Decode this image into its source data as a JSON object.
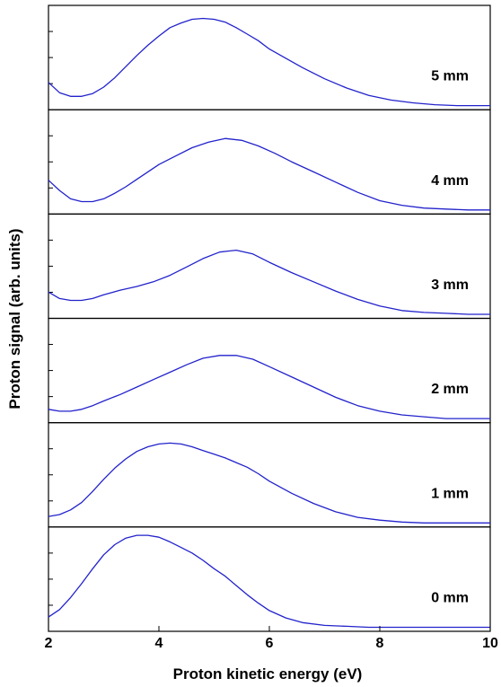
{
  "chart_data": {
    "type": "line",
    "xlabel": "Proton kinetic energy (eV)",
    "ylabel": "Proton signal (arb. units)",
    "xlim": [
      2,
      10
    ],
    "xticks": [
      "2",
      "4",
      "6",
      "8",
      "10"
    ],
    "ylim": [
      0,
      1
    ],
    "line_color": "#2222cc",
    "panels": [
      {
        "name": "5 mm",
        "x": [
          2.0,
          2.2,
          2.4,
          2.6,
          2.8,
          3.0,
          3.2,
          3.4,
          3.6,
          3.8,
          4.0,
          4.2,
          4.4,
          4.6,
          4.8,
          5.0,
          5.2,
          5.4,
          5.6,
          5.8,
          6.0,
          6.3,
          6.6,
          7.0,
          7.4,
          7.8,
          8.2,
          8.6,
          9.0,
          9.4,
          10.0
        ],
        "y": [
          0.26,
          0.15,
          0.11,
          0.11,
          0.14,
          0.21,
          0.31,
          0.43,
          0.55,
          0.66,
          0.76,
          0.85,
          0.9,
          0.94,
          0.95,
          0.94,
          0.91,
          0.85,
          0.78,
          0.71,
          0.62,
          0.52,
          0.42,
          0.3,
          0.2,
          0.12,
          0.07,
          0.04,
          0.02,
          0.01,
          0.01
        ]
      },
      {
        "name": "4 mm",
        "x": [
          2.0,
          2.2,
          2.4,
          2.6,
          2.8,
          3.0,
          3.2,
          3.4,
          3.6,
          3.8,
          4.0,
          4.3,
          4.6,
          4.9,
          5.2,
          5.5,
          5.8,
          6.1,
          6.4,
          6.8,
          7.2,
          7.6,
          8.0,
          8.4,
          8.8,
          9.2,
          9.6,
          10.0
        ],
        "y": [
          0.33,
          0.22,
          0.13,
          0.1,
          0.1,
          0.13,
          0.19,
          0.26,
          0.34,
          0.42,
          0.5,
          0.59,
          0.68,
          0.74,
          0.78,
          0.76,
          0.7,
          0.62,
          0.53,
          0.42,
          0.31,
          0.2,
          0.11,
          0.06,
          0.03,
          0.02,
          0.01,
          0.01
        ]
      },
      {
        "name": "3 mm",
        "x": [
          2.0,
          2.2,
          2.4,
          2.6,
          2.8,
          3.0,
          3.3,
          3.6,
          3.9,
          4.2,
          4.5,
          4.8,
          5.1,
          5.4,
          5.7,
          6.0,
          6.4,
          6.8,
          7.2,
          7.6,
          8.0,
          8.4,
          8.8,
          9.2,
          9.6,
          10.0
        ],
        "y": [
          0.25,
          0.18,
          0.16,
          0.16,
          0.18,
          0.22,
          0.27,
          0.31,
          0.36,
          0.43,
          0.52,
          0.61,
          0.68,
          0.7,
          0.66,
          0.57,
          0.46,
          0.36,
          0.26,
          0.17,
          0.1,
          0.05,
          0.03,
          0.02,
          0.01,
          0.01
        ]
      },
      {
        "name": "2 mm",
        "x": [
          2.0,
          2.2,
          2.4,
          2.6,
          2.8,
          3.0,
          3.3,
          3.6,
          3.9,
          4.2,
          4.5,
          4.8,
          5.1,
          5.4,
          5.7,
          6.0,
          6.4,
          6.8,
          7.2,
          7.6,
          8.0,
          8.4,
          8.8,
          9.2,
          9.6,
          10.0
        ],
        "y": [
          0.11,
          0.09,
          0.09,
          0.11,
          0.15,
          0.2,
          0.27,
          0.35,
          0.43,
          0.51,
          0.59,
          0.66,
          0.69,
          0.69,
          0.65,
          0.57,
          0.46,
          0.35,
          0.24,
          0.15,
          0.09,
          0.05,
          0.03,
          0.01,
          0.01,
          0.01
        ]
      },
      {
        "name": "1 mm",
        "x": [
          2.0,
          2.2,
          2.4,
          2.6,
          2.8,
          3.0,
          3.2,
          3.4,
          3.6,
          3.8,
          4.0,
          4.2,
          4.4,
          4.6,
          4.8,
          5.0,
          5.2,
          5.4,
          5.6,
          5.8,
          6.0,
          6.4,
          6.8,
          7.2,
          7.6,
          8.0,
          8.4,
          8.8,
          9.2,
          9.6,
          10.0
        ],
        "y": [
          0.08,
          0.1,
          0.15,
          0.23,
          0.35,
          0.48,
          0.6,
          0.7,
          0.78,
          0.83,
          0.86,
          0.87,
          0.86,
          0.83,
          0.79,
          0.75,
          0.71,
          0.66,
          0.61,
          0.54,
          0.46,
          0.33,
          0.22,
          0.13,
          0.07,
          0.04,
          0.02,
          0.01,
          0.01,
          0.01,
          0.01
        ]
      },
      {
        "name": "0 mm",
        "x": [
          2.0,
          2.2,
          2.4,
          2.6,
          2.8,
          3.0,
          3.2,
          3.4,
          3.6,
          3.8,
          4.0,
          4.2,
          4.4,
          4.6,
          4.8,
          5.0,
          5.2,
          5.4,
          5.6,
          5.8,
          6.0,
          6.3,
          6.6,
          7.0,
          7.4,
          7.8,
          8.2,
          8.6,
          9.0,
          9.5,
          10.0
        ],
        "y": [
          0.12,
          0.2,
          0.33,
          0.48,
          0.64,
          0.79,
          0.9,
          0.97,
          1.0,
          1.0,
          0.98,
          0.93,
          0.87,
          0.81,
          0.73,
          0.64,
          0.56,
          0.46,
          0.36,
          0.27,
          0.19,
          0.11,
          0.06,
          0.03,
          0.02,
          0.01,
          0.01,
          0.01,
          0.01,
          0.01,
          0.01
        ]
      }
    ]
  }
}
